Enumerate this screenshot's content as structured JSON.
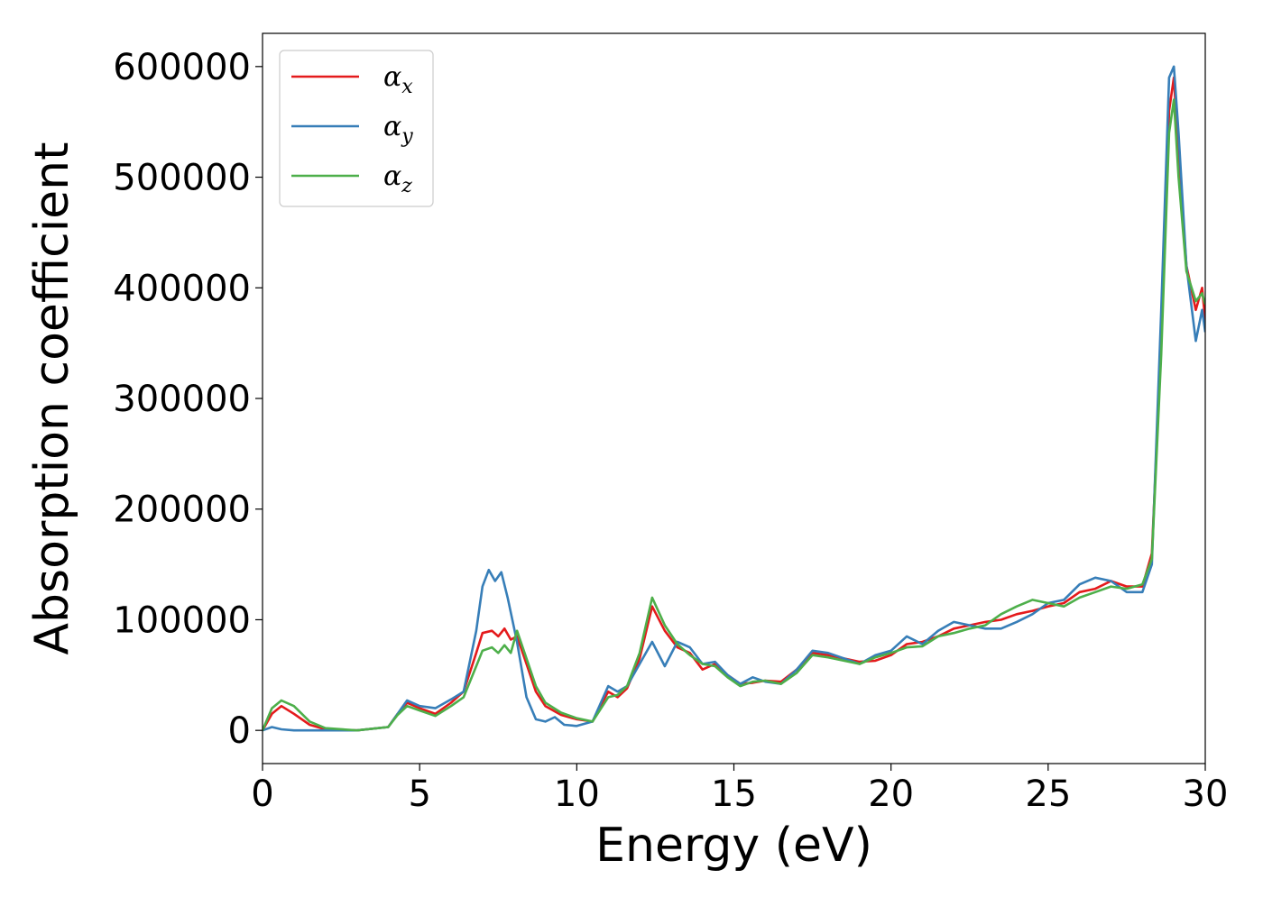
{
  "chart_data": {
    "type": "line",
    "title": "",
    "xlabel": "Energy (eV)",
    "ylabel": "Absorption coefficient",
    "xlim": [
      0,
      30
    ],
    "ylim": [
      -30000,
      630000
    ],
    "xticks": [
      0,
      5,
      10,
      15,
      20,
      25,
      30
    ],
    "yticks": [
      0,
      100000,
      200000,
      300000,
      400000,
      500000,
      600000
    ],
    "grid": false,
    "legend_position": "top-left",
    "series": [
      {
        "name": "αx",
        "legend_base": "α",
        "legend_sub": "x",
        "color": "#e41a1c",
        "x": [
          0,
          0.3,
          0.6,
          1.0,
          1.5,
          2.0,
          3.0,
          4.0,
          4.3,
          4.6,
          5.0,
          5.5,
          6.0,
          6.4,
          6.8,
          7.0,
          7.3,
          7.5,
          7.7,
          7.9,
          8.1,
          8.4,
          8.7,
          9.0,
          9.5,
          10.0,
          10.5,
          11.0,
          11.3,
          11.6,
          12.0,
          12.4,
          12.8,
          13.2,
          13.6,
          14.0,
          14.4,
          14.8,
          15.2,
          15.6,
          16.0,
          16.5,
          17.0,
          17.5,
          18.0,
          18.5,
          19.0,
          19.5,
          20.0,
          20.5,
          21.0,
          21.5,
          22.0,
          22.5,
          23.0,
          23.5,
          24.0,
          24.5,
          25.0,
          25.5,
          26.0,
          26.5,
          27.0,
          27.5,
          28.0,
          28.3,
          28.6,
          28.85,
          29.0,
          29.15,
          29.4,
          29.7,
          29.9,
          30.0
        ],
        "y": [
          0,
          15000,
          22000,
          15000,
          5000,
          1000,
          0,
          3000,
          15000,
          25000,
          20000,
          15000,
          25000,
          35000,
          70000,
          88000,
          90000,
          85000,
          92000,
          82000,
          85000,
          60000,
          35000,
          22000,
          14000,
          10000,
          8000,
          35000,
          30000,
          38000,
          65000,
          112000,
          90000,
          75000,
          70000,
          55000,
          60000,
          50000,
          42000,
          43000,
          45000,
          44000,
          55000,
          70000,
          68000,
          65000,
          62000,
          63000,
          68000,
          78000,
          80000,
          85000,
          92000,
          95000,
          98000,
          100000,
          105000,
          108000,
          112000,
          115000,
          125000,
          128000,
          135000,
          130000,
          130000,
          160000,
          350000,
          560000,
          590000,
          520000,
          420000,
          380000,
          400000,
          370000
        ]
      },
      {
        "name": "αy",
        "legend_base": "α",
        "legend_sub": "y",
        "color": "#377eb8",
        "x": [
          0,
          0.3,
          0.6,
          1.0,
          1.5,
          2.0,
          3.0,
          4.0,
          4.3,
          4.6,
          5.0,
          5.5,
          6.0,
          6.4,
          6.8,
          7.0,
          7.2,
          7.4,
          7.6,
          7.8,
          8.1,
          8.4,
          8.7,
          9.0,
          9.3,
          9.6,
          10.0,
          10.5,
          11.0,
          11.3,
          11.6,
          12.0,
          12.4,
          12.8,
          13.2,
          13.6,
          14.0,
          14.4,
          14.8,
          15.2,
          15.6,
          16.0,
          16.5,
          17.0,
          17.5,
          18.0,
          18.5,
          19.0,
          19.5,
          20.0,
          20.5,
          21.0,
          21.5,
          22.0,
          22.5,
          23.0,
          23.5,
          24.0,
          24.5,
          25.0,
          25.5,
          26.0,
          26.5,
          27.0,
          27.5,
          28.0,
          28.3,
          28.6,
          28.85,
          29.0,
          29.15,
          29.4,
          29.7,
          29.9,
          30.0
        ],
        "y": [
          0,
          3000,
          1000,
          0,
          0,
          0,
          0,
          3000,
          15000,
          27000,
          22000,
          20000,
          28000,
          35000,
          90000,
          130000,
          145000,
          135000,
          143000,
          120000,
          80000,
          30000,
          10000,
          8000,
          12000,
          5000,
          4000,
          8000,
          40000,
          35000,
          40000,
          60000,
          80000,
          58000,
          80000,
          75000,
          60000,
          62000,
          50000,
          42000,
          48000,
          44000,
          42000,
          55000,
          72000,
          70000,
          65000,
          60000,
          68000,
          72000,
          85000,
          78000,
          90000,
          98000,
          95000,
          92000,
          92000,
          98000,
          105000,
          115000,
          118000,
          132000,
          138000,
          135000,
          125000,
          125000,
          150000,
          380000,
          590000,
          600000,
          540000,
          420000,
          352000,
          380000,
          360000
        ]
      },
      {
        "name": "αz",
        "legend_base": "α",
        "legend_sub": "z",
        "color": "#4daf4a",
        "x": [
          0,
          0.3,
          0.6,
          1.0,
          1.5,
          2.0,
          3.0,
          4.0,
          4.3,
          4.6,
          5.0,
          5.5,
          6.0,
          6.4,
          6.8,
          7.0,
          7.3,
          7.5,
          7.7,
          7.9,
          8.1,
          8.4,
          8.7,
          9.0,
          9.5,
          10.0,
          10.5,
          11.0,
          11.3,
          11.6,
          12.0,
          12.4,
          12.8,
          13.2,
          13.6,
          14.0,
          14.4,
          14.8,
          15.2,
          15.6,
          16.0,
          16.5,
          17.0,
          17.5,
          18.0,
          18.5,
          19.0,
          19.5,
          20.0,
          20.5,
          21.0,
          21.5,
          22.0,
          22.5,
          23.0,
          23.5,
          24.0,
          24.5,
          25.0,
          25.5,
          26.0,
          26.5,
          27.0,
          27.5,
          28.0,
          28.3,
          28.6,
          28.85,
          29.0,
          29.15,
          29.4,
          29.7,
          29.9,
          30.0
        ],
        "y": [
          0,
          20000,
          27000,
          22000,
          8000,
          2000,
          0,
          3000,
          14000,
          22000,
          18000,
          13000,
          22000,
          30000,
          58000,
          72000,
          75000,
          70000,
          77000,
          70000,
          90000,
          65000,
          40000,
          25000,
          16000,
          11000,
          8000,
          30000,
          32000,
          40000,
          70000,
          120000,
          95000,
          78000,
          68000,
          60000,
          58000,
          48000,
          40000,
          44000,
          45000,
          42000,
          52000,
          68000,
          66000,
          63000,
          60000,
          66000,
          70000,
          75000,
          76000,
          85000,
          88000,
          92000,
          95000,
          105000,
          112000,
          118000,
          115000,
          112000,
          120000,
          125000,
          130000,
          128000,
          132000,
          155000,
          340000,
          540000,
          570000,
          500000,
          415000,
          388000,
          395000,
          385000
        ]
      }
    ]
  }
}
